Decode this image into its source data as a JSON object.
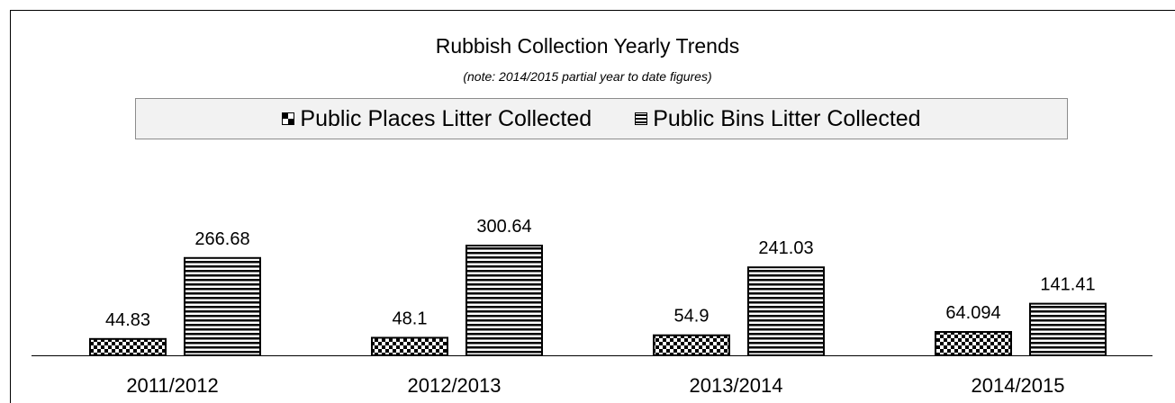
{
  "chart_data": {
    "type": "bar",
    "title": "Rubbish Collection Yearly Trends",
    "subtitle": "(note: 2014/2015 partial year to date figures)",
    "categories": [
      "2011/2012",
      "2012/2013",
      "2013/2014",
      "2014/2015"
    ],
    "series": [
      {
        "name": "Public Places Litter Collected",
        "values": [
          44.83,
          48.1,
          54.9,
          64.094
        ],
        "labels": [
          "44.83",
          "48.1",
          "54.9",
          "64.094"
        ],
        "pattern": "checker"
      },
      {
        "name": "Public Bins Litter Collected",
        "values": [
          266.68,
          300.64,
          241.03,
          141.41
        ],
        "labels": [
          "266.68",
          "300.64",
          "241.03",
          "141.41"
        ],
        "pattern": "horizontal-lines"
      }
    ],
    "ylim": [
      0,
      300.64
    ],
    "legend_position": "top",
    "grid": false
  }
}
